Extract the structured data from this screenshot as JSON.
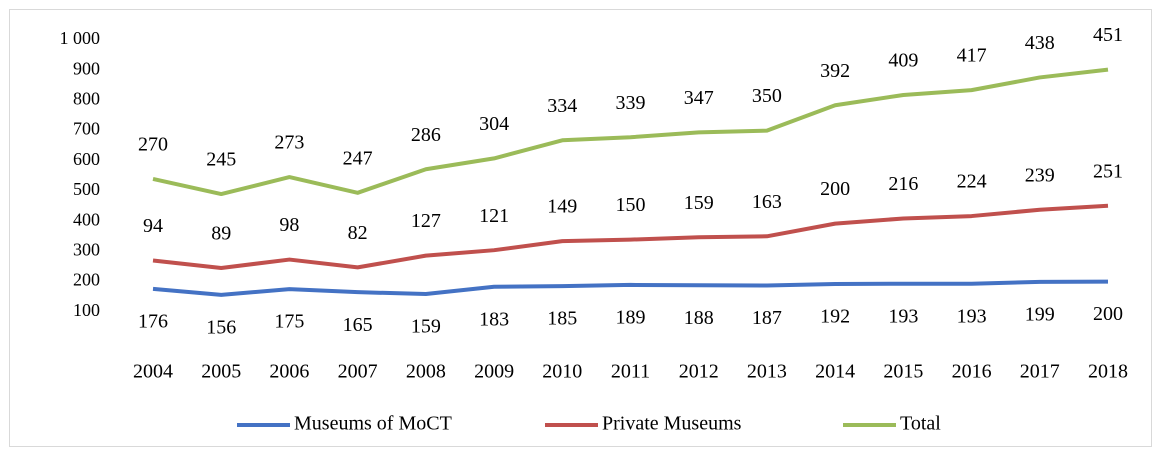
{
  "chart_data": {
    "type": "stacked-line",
    "categories": [
      "2004",
      "2005",
      "2006",
      "2007",
      "2008",
      "2009",
      "2010",
      "2011",
      "2012",
      "2013",
      "2014",
      "2015",
      "2016",
      "2017",
      "2018"
    ],
    "series": [
      {
        "name": "Museums of MoCT",
        "color": "#4472c4",
        "values": [
          176,
          156,
          175,
          165,
          159,
          183,
          185,
          189,
          188,
          187,
          192,
          193,
          193,
          199,
          200
        ]
      },
      {
        "name": "Private Museums",
        "color": "#c0504d",
        "values": [
          94,
          89,
          98,
          82,
          127,
          121,
          149,
          150,
          159,
          163,
          200,
          216,
          224,
          239,
          251
        ]
      },
      {
        "name": "Total",
        "color": "#9bbb59",
        "values": [
          270,
          245,
          273,
          247,
          286,
          304,
          334,
          339,
          347,
          350,
          392,
          409,
          417,
          438,
          451
        ]
      }
    ],
    "ylim": [
      0,
      1000
    ],
    "yticks": [
      100,
      200,
      300,
      400,
      500,
      600,
      700,
      800,
      900,
      {
        "value": 1000,
        "label": "1 000"
      }
    ],
    "grid": false
  }
}
